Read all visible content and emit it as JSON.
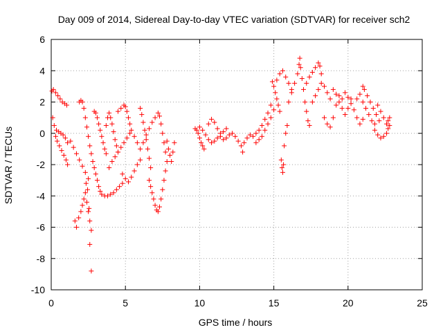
{
  "chart_data": {
    "type": "scatter",
    "title": "Day 009 of 2014, Sidereal Day-to-day VTEC variation (SDTVAR) for receiver sch2",
    "xlabel": "GPS time / hours",
    "ylabel": "SDTVAR / TECUs",
    "xlim": [
      0,
      25
    ],
    "ylim": [
      -10,
      6
    ],
    "xticks": [
      "0",
      "5",
      "10",
      "15",
      "20",
      "25"
    ],
    "yticks": [
      "-10",
      "-8",
      "-6",
      "-4",
      "-2",
      "0",
      "2",
      "4",
      "6"
    ],
    "grid": true,
    "marker": "+",
    "series_color": "#ff0000",
    "series": [
      {
        "name": "SDTVAR",
        "points": [
          [
            0.05,
            2.7
          ],
          [
            0.15,
            2.8
          ],
          [
            0.3,
            2.6
          ],
          [
            0.45,
            2.4
          ],
          [
            0.6,
            2.2
          ],
          [
            0.75,
            2.0
          ],
          [
            0.9,
            1.9
          ],
          [
            1.05,
            1.8
          ],
          [
            0.1,
            1.0
          ],
          [
            0.2,
            0.5
          ],
          [
            0.35,
            0.2
          ],
          [
            0.5,
            0.1
          ],
          [
            0.65,
            0.0
          ],
          [
            0.8,
            -0.1
          ],
          [
            0.95,
            -0.3
          ],
          [
            1.1,
            -0.6
          ],
          [
            0.3,
            -0.2
          ],
          [
            0.4,
            -0.5
          ],
          [
            0.55,
            -0.8
          ],
          [
            0.7,
            -1.1
          ],
          [
            0.85,
            -1.4
          ],
          [
            1.0,
            -1.7
          ],
          [
            1.1,
            -2.0
          ],
          [
            1.3,
            -0.5
          ],
          [
            1.5,
            -0.9
          ],
          [
            1.7,
            -1.3
          ],
          [
            1.9,
            -1.7
          ],
          [
            2.1,
            -2.1
          ],
          [
            2.3,
            -2.5
          ],
          [
            2.5,
            -2.9
          ],
          [
            1.6,
            -5.6
          ],
          [
            1.7,
            -6.0
          ],
          [
            1.85,
            -5.4
          ],
          [
            2.0,
            -5.0
          ],
          [
            2.1,
            -4.6
          ],
          [
            2.2,
            -4.2
          ],
          [
            2.3,
            -3.8
          ],
          [
            2.4,
            -4.4
          ],
          [
            2.5,
            -5.0
          ],
          [
            2.6,
            -5.6
          ],
          [
            2.7,
            -6.2
          ],
          [
            2.55,
            -4.8
          ],
          [
            2.45,
            -3.6
          ],
          [
            2.35,
            -3.2
          ],
          [
            2.6,
            -7.1
          ],
          [
            2.7,
            -8.8
          ],
          [
            1.9,
            2.0
          ],
          [
            2.0,
            2.1
          ],
          [
            2.1,
            2.0
          ],
          [
            2.2,
            1.6
          ],
          [
            2.3,
            1.0
          ],
          [
            2.4,
            0.4
          ],
          [
            2.5,
            -0.2
          ],
          [
            2.6,
            -0.8
          ],
          [
            2.7,
            -1.3
          ],
          [
            2.8,
            -1.8
          ],
          [
            2.9,
            -2.2
          ],
          [
            3.0,
            -2.6
          ],
          [
            3.1,
            -3.0
          ],
          [
            3.2,
            -3.4
          ],
          [
            3.3,
            -3.7
          ],
          [
            3.4,
            -3.9
          ],
          [
            3.6,
            -4.0
          ],
          [
            3.8,
            -4.0
          ],
          [
            4.0,
            -3.9
          ],
          [
            4.2,
            -3.8
          ],
          [
            4.4,
            -3.6
          ],
          [
            4.6,
            -3.4
          ],
          [
            4.8,
            -3.2
          ],
          [
            2.9,
            1.4
          ],
          [
            3.0,
            1.3
          ],
          [
            3.1,
            1.0
          ],
          [
            3.2,
            0.6
          ],
          [
            3.3,
            0.2
          ],
          [
            3.4,
            -0.2
          ],
          [
            3.5,
            -0.6
          ],
          [
            3.6,
            -1.0
          ],
          [
            3.7,
            -1.3
          ],
          [
            3.7,
            0.5
          ],
          [
            3.8,
            1.0
          ],
          [
            3.9,
            1.3
          ],
          [
            4.0,
            1.0
          ],
          [
            4.1,
            0.6
          ],
          [
            4.2,
            0.1
          ],
          [
            4.3,
            -0.4
          ],
          [
            4.4,
            -0.8
          ],
          [
            4.5,
            -1.2
          ],
          [
            3.9,
            -2.2
          ],
          [
            4.1,
            -1.8
          ],
          [
            4.3,
            -1.5
          ],
          [
            4.5,
            -1.2
          ],
          [
            4.7,
            -0.9
          ],
          [
            4.9,
            -0.6
          ],
          [
            5.1,
            -0.3
          ],
          [
            5.3,
            0.0
          ],
          [
            4.5,
            1.4
          ],
          [
            4.7,
            1.6
          ],
          [
            4.9,
            1.8
          ],
          [
            5.0,
            1.7
          ],
          [
            5.1,
            1.4
          ],
          [
            5.2,
            1.0
          ],
          [
            5.3,
            0.6
          ],
          [
            5.4,
            0.2
          ],
          [
            4.8,
            -2.6
          ],
          [
            5.0,
            -2.9
          ],
          [
            5.2,
            -3.1
          ],
          [
            5.4,
            -2.8
          ],
          [
            5.6,
            -2.4
          ],
          [
            5.8,
            -2.0
          ],
          [
            6.0,
            -1.7
          ],
          [
            5.6,
            -0.2
          ],
          [
            5.8,
            -0.6
          ],
          [
            6.0,
            -1.0
          ],
          [
            6.2,
            -0.6
          ],
          [
            6.4,
            -0.1
          ],
          [
            6.6,
            0.3
          ],
          [
            6.8,
            0.7
          ],
          [
            6.0,
            1.6
          ],
          [
            6.1,
            1.2
          ],
          [
            6.2,
            0.7
          ],
          [
            6.3,
            0.2
          ],
          [
            6.4,
            -0.4
          ],
          [
            6.5,
            -1.0
          ],
          [
            6.6,
            -1.6
          ],
          [
            6.7,
            -2.2
          ],
          [
            6.6,
            -3.0
          ],
          [
            6.7,
            -3.4
          ],
          [
            6.8,
            -3.8
          ],
          [
            6.9,
            -4.2
          ],
          [
            7.0,
            -4.6
          ],
          [
            7.1,
            -4.9
          ],
          [
            7.2,
            -5.0
          ],
          [
            7.3,
            -4.7
          ],
          [
            7.4,
            -4.2
          ],
          [
            7.5,
            -3.6
          ],
          [
            7.6,
            -3.0
          ],
          [
            7.7,
            -2.4
          ],
          [
            7.8,
            -1.8
          ],
          [
            7.0,
            1.0
          ],
          [
            7.2,
            1.3
          ],
          [
            7.3,
            1.1
          ],
          [
            7.4,
            0.6
          ],
          [
            7.5,
            0.0
          ],
          [
            7.6,
            -0.6
          ],
          [
            7.7,
            -1.2
          ],
          [
            7.8,
            -0.5
          ],
          [
            7.9,
            -1.0
          ],
          [
            8.0,
            -1.4
          ],
          [
            8.1,
            -1.8
          ],
          [
            8.2,
            -1.2
          ],
          [
            8.3,
            -0.6
          ],
          [
            9.7,
            0.3
          ],
          [
            9.8,
            0.2
          ],
          [
            9.9,
            0.0
          ],
          [
            10.0,
            -0.3
          ],
          [
            10.1,
            -0.6
          ],
          [
            10.2,
            -0.8
          ],
          [
            10.3,
            -1.0
          ],
          [
            10.0,
            0.4
          ],
          [
            10.2,
            0.2
          ],
          [
            10.4,
            -0.1
          ],
          [
            10.6,
            -0.4
          ],
          [
            10.8,
            -0.6
          ],
          [
            11.0,
            -0.5
          ],
          [
            11.2,
            -0.3
          ],
          [
            10.6,
            0.6
          ],
          [
            10.8,
            0.9
          ],
          [
            11.0,
            0.7
          ],
          [
            11.2,
            0.3
          ],
          [
            11.4,
            0.0
          ],
          [
            11.6,
            0.1
          ],
          [
            11.8,
            0.3
          ],
          [
            11.4,
            -0.2
          ],
          [
            11.6,
            -0.4
          ],
          [
            11.8,
            -0.3
          ],
          [
            12.0,
            -0.1
          ],
          [
            12.2,
            0.0
          ],
          [
            12.4,
            -0.2
          ],
          [
            12.6,
            -0.5
          ],
          [
            12.8,
            -0.8
          ],
          [
            12.9,
            -1.2
          ],
          [
            13.0,
            -0.6
          ],
          [
            13.2,
            -0.3
          ],
          [
            13.4,
            -0.1
          ],
          [
            13.6,
            -0.2
          ],
          [
            13.8,
            0.0
          ],
          [
            14.0,
            0.2
          ],
          [
            14.2,
            0.5
          ],
          [
            14.4,
            0.9
          ],
          [
            14.6,
            1.3
          ],
          [
            14.8,
            1.8
          ],
          [
            13.8,
            -0.6
          ],
          [
            14.0,
            -0.4
          ],
          [
            14.2,
            -0.2
          ],
          [
            14.4,
            0.2
          ],
          [
            14.6,
            0.6
          ],
          [
            14.8,
            1.0
          ],
          [
            15.0,
            1.5
          ],
          [
            14.9,
            3.3
          ],
          [
            15.0,
            3.0
          ],
          [
            15.1,
            2.6
          ],
          [
            15.2,
            2.2
          ],
          [
            15.3,
            1.8
          ],
          [
            15.4,
            1.4
          ],
          [
            15.2,
            3.4
          ],
          [
            15.4,
            3.8
          ],
          [
            15.6,
            4.0
          ],
          [
            15.8,
            3.6
          ],
          [
            16.0,
            3.2
          ],
          [
            16.2,
            2.8
          ],
          [
            15.5,
            -1.7
          ],
          [
            15.55,
            -2.2
          ],
          [
            15.6,
            -2.5
          ],
          [
            15.65,
            -2.0
          ],
          [
            15.7,
            -0.8
          ],
          [
            15.8,
            0.0
          ],
          [
            15.9,
            0.5
          ],
          [
            16.0,
            2.0
          ],
          [
            16.2,
            2.6
          ],
          [
            16.4,
            3.2
          ],
          [
            16.6,
            3.8
          ],
          [
            16.7,
            4.4
          ],
          [
            16.75,
            4.8
          ],
          [
            16.8,
            4.2
          ],
          [
            16.9,
            3.5
          ],
          [
            17.0,
            2.8
          ],
          [
            17.1,
            2.0
          ],
          [
            17.2,
            1.4
          ],
          [
            17.3,
            0.8
          ],
          [
            17.4,
            0.5
          ],
          [
            17.2,
            3.2
          ],
          [
            17.4,
            3.6
          ],
          [
            17.6,
            3.9
          ],
          [
            17.8,
            4.2
          ],
          [
            18.0,
            4.5
          ],
          [
            18.1,
            4.3
          ],
          [
            18.2,
            3.8
          ],
          [
            17.6,
            2.0
          ],
          [
            17.8,
            2.4
          ],
          [
            18.0,
            2.8
          ],
          [
            18.2,
            3.2
          ],
          [
            18.4,
            3.0
          ],
          [
            18.6,
            2.6
          ],
          [
            18.8,
            2.2
          ],
          [
            18.4,
            1.0
          ],
          [
            18.6,
            0.6
          ],
          [
            18.8,
            0.4
          ],
          [
            19.0,
            1.0
          ],
          [
            19.2,
            1.8
          ],
          [
            19.4,
            2.4
          ],
          [
            19.6,
            2.2
          ],
          [
            19.0,
            2.8
          ],
          [
            19.2,
            2.5
          ],
          [
            19.4,
            2.0
          ],
          [
            19.6,
            1.6
          ],
          [
            19.8,
            1.2
          ],
          [
            20.0,
            1.6
          ],
          [
            20.2,
            2.2
          ],
          [
            19.8,
            2.6
          ],
          [
            20.0,
            2.3
          ],
          [
            20.2,
            1.9
          ],
          [
            20.4,
            1.5
          ],
          [
            20.6,
            1.0
          ],
          [
            20.8,
            0.6
          ],
          [
            21.0,
            0.9
          ],
          [
            20.6,
            2.2
          ],
          [
            20.8,
            2.5
          ],
          [
            21.0,
            2.0
          ],
          [
            21.2,
            1.6
          ],
          [
            21.4,
            1.2
          ],
          [
            21.6,
            0.8
          ],
          [
            21.8,
            0.6
          ],
          [
            21.0,
            3.0
          ],
          [
            21.1,
            2.8
          ],
          [
            21.3,
            2.4
          ],
          [
            21.5,
            2.0
          ],
          [
            21.7,
            1.6
          ],
          [
            21.9,
            1.2
          ],
          [
            22.1,
            0.8
          ],
          [
            21.8,
            0.2
          ],
          [
            22.0,
            -0.1
          ],
          [
            22.2,
            -0.3
          ],
          [
            22.4,
            -0.2
          ],
          [
            22.6,
            0.0
          ],
          [
            22.7,
            0.3
          ],
          [
            22.8,
            0.5
          ],
          [
            22.0,
            1.8
          ],
          [
            22.2,
            1.4
          ],
          [
            22.4,
            1.0
          ],
          [
            22.6,
            0.6
          ],
          [
            22.7,
            0.8
          ],
          [
            22.8,
            1.0
          ]
        ]
      }
    ]
  }
}
